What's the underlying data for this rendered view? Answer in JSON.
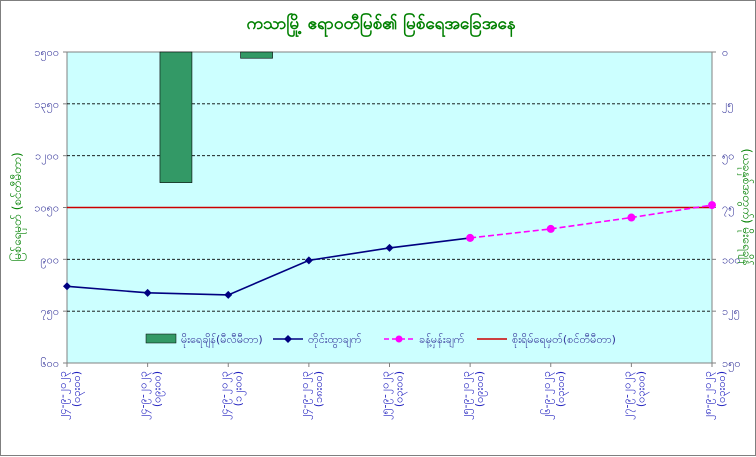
{
  "chart_data": {
    "title": "ကသာမြို့ ဧရာဝတီမြစ်၏ မြစ်ရေအခြေအနေ",
    "type": "line",
    "ylabel_left": "မြစ်ရေမှတ် (စင်တီမီတာ)",
    "ylabel_right": "(ယခုနှစ်အတွက်) မိုးရေချိန်",
    "y_left_ticks": [
      "၆၀၀",
      "၇၅၀",
      "၉၀၀",
      "၁၀၅၀",
      "၁၂၀၀",
      "၁၃၅၀",
      "၁၅၀၀"
    ],
    "y_left_range": [
      600,
      1500
    ],
    "y_right_ticks": [
      "၀",
      "၂၅",
      "၅၀",
      "၇၅",
      "၁၀၀",
      "၁၂၅",
      "၁၅၀"
    ],
    "y_right_range": [
      0,
      150
    ],
    "categories": [
      {
        "date": "၂၄-၉-၂၀၂၃",
        "time": "(၀၃း၀၀)"
      },
      {
        "date": "၂၄-၉-၂၀၂၃",
        "time": "(၀၉း၀၀)"
      },
      {
        "date": "၂၄-၉-၂၀၂၃",
        "time": "(၁၂း၀၀)"
      },
      {
        "date": "၂၄-၉-၂၀၂၃",
        "time": "(၁၈း၀၀)"
      },
      {
        "date": "၂၅-၉-၂၀၂၃",
        "time": "(၀၃း၀၀)"
      },
      {
        "date": "၂၅-၉-၂၀၂၃",
        "time": "(၀၉း၀၀)"
      },
      {
        "date": "၂၆-၉-၂၀၂၃",
        "time": "(၀၃း၀၀)"
      },
      {
        "date": "၂၇-၉-၂၀၂၃",
        "time": "(၀၃း၀၀)"
      },
      {
        "date": "၂၈-၉-၂၀၂၃",
        "time": "(၀၃း၀၀)"
      }
    ],
    "series": [
      {
        "name": "မိုးရေချိန်(မီလီမီတာ)",
        "type": "bar",
        "axis": "right",
        "color": "#339966",
        "values": [
          null,
          63,
          3,
          null,
          null,
          null,
          null,
          null,
          null
        ]
      },
      {
        "name": "တိုင်းထွာချက်",
        "type": "line",
        "axis": "left",
        "color": "#000080",
        "values": [
          822,
          803,
          797,
          897,
          933,
          962,
          null,
          null,
          null
        ]
      },
      {
        "name": "ခန့်မှန်းချက်",
        "type": "line-dashed",
        "axis": "left",
        "color": "#ff00ff",
        "values": [
          null,
          null,
          null,
          null,
          null,
          962,
          988,
          1021,
          1057
        ]
      }
    ],
    "reference_line": {
      "name": "စိုးရိမ်ရေမှတ်(စင်တီမီတာ)",
      "value": 1050,
      "color": "#cc0000"
    },
    "plot_background": "#ccffff",
    "grid": "dashed horizontal",
    "legend_position": "bottom-inside"
  }
}
